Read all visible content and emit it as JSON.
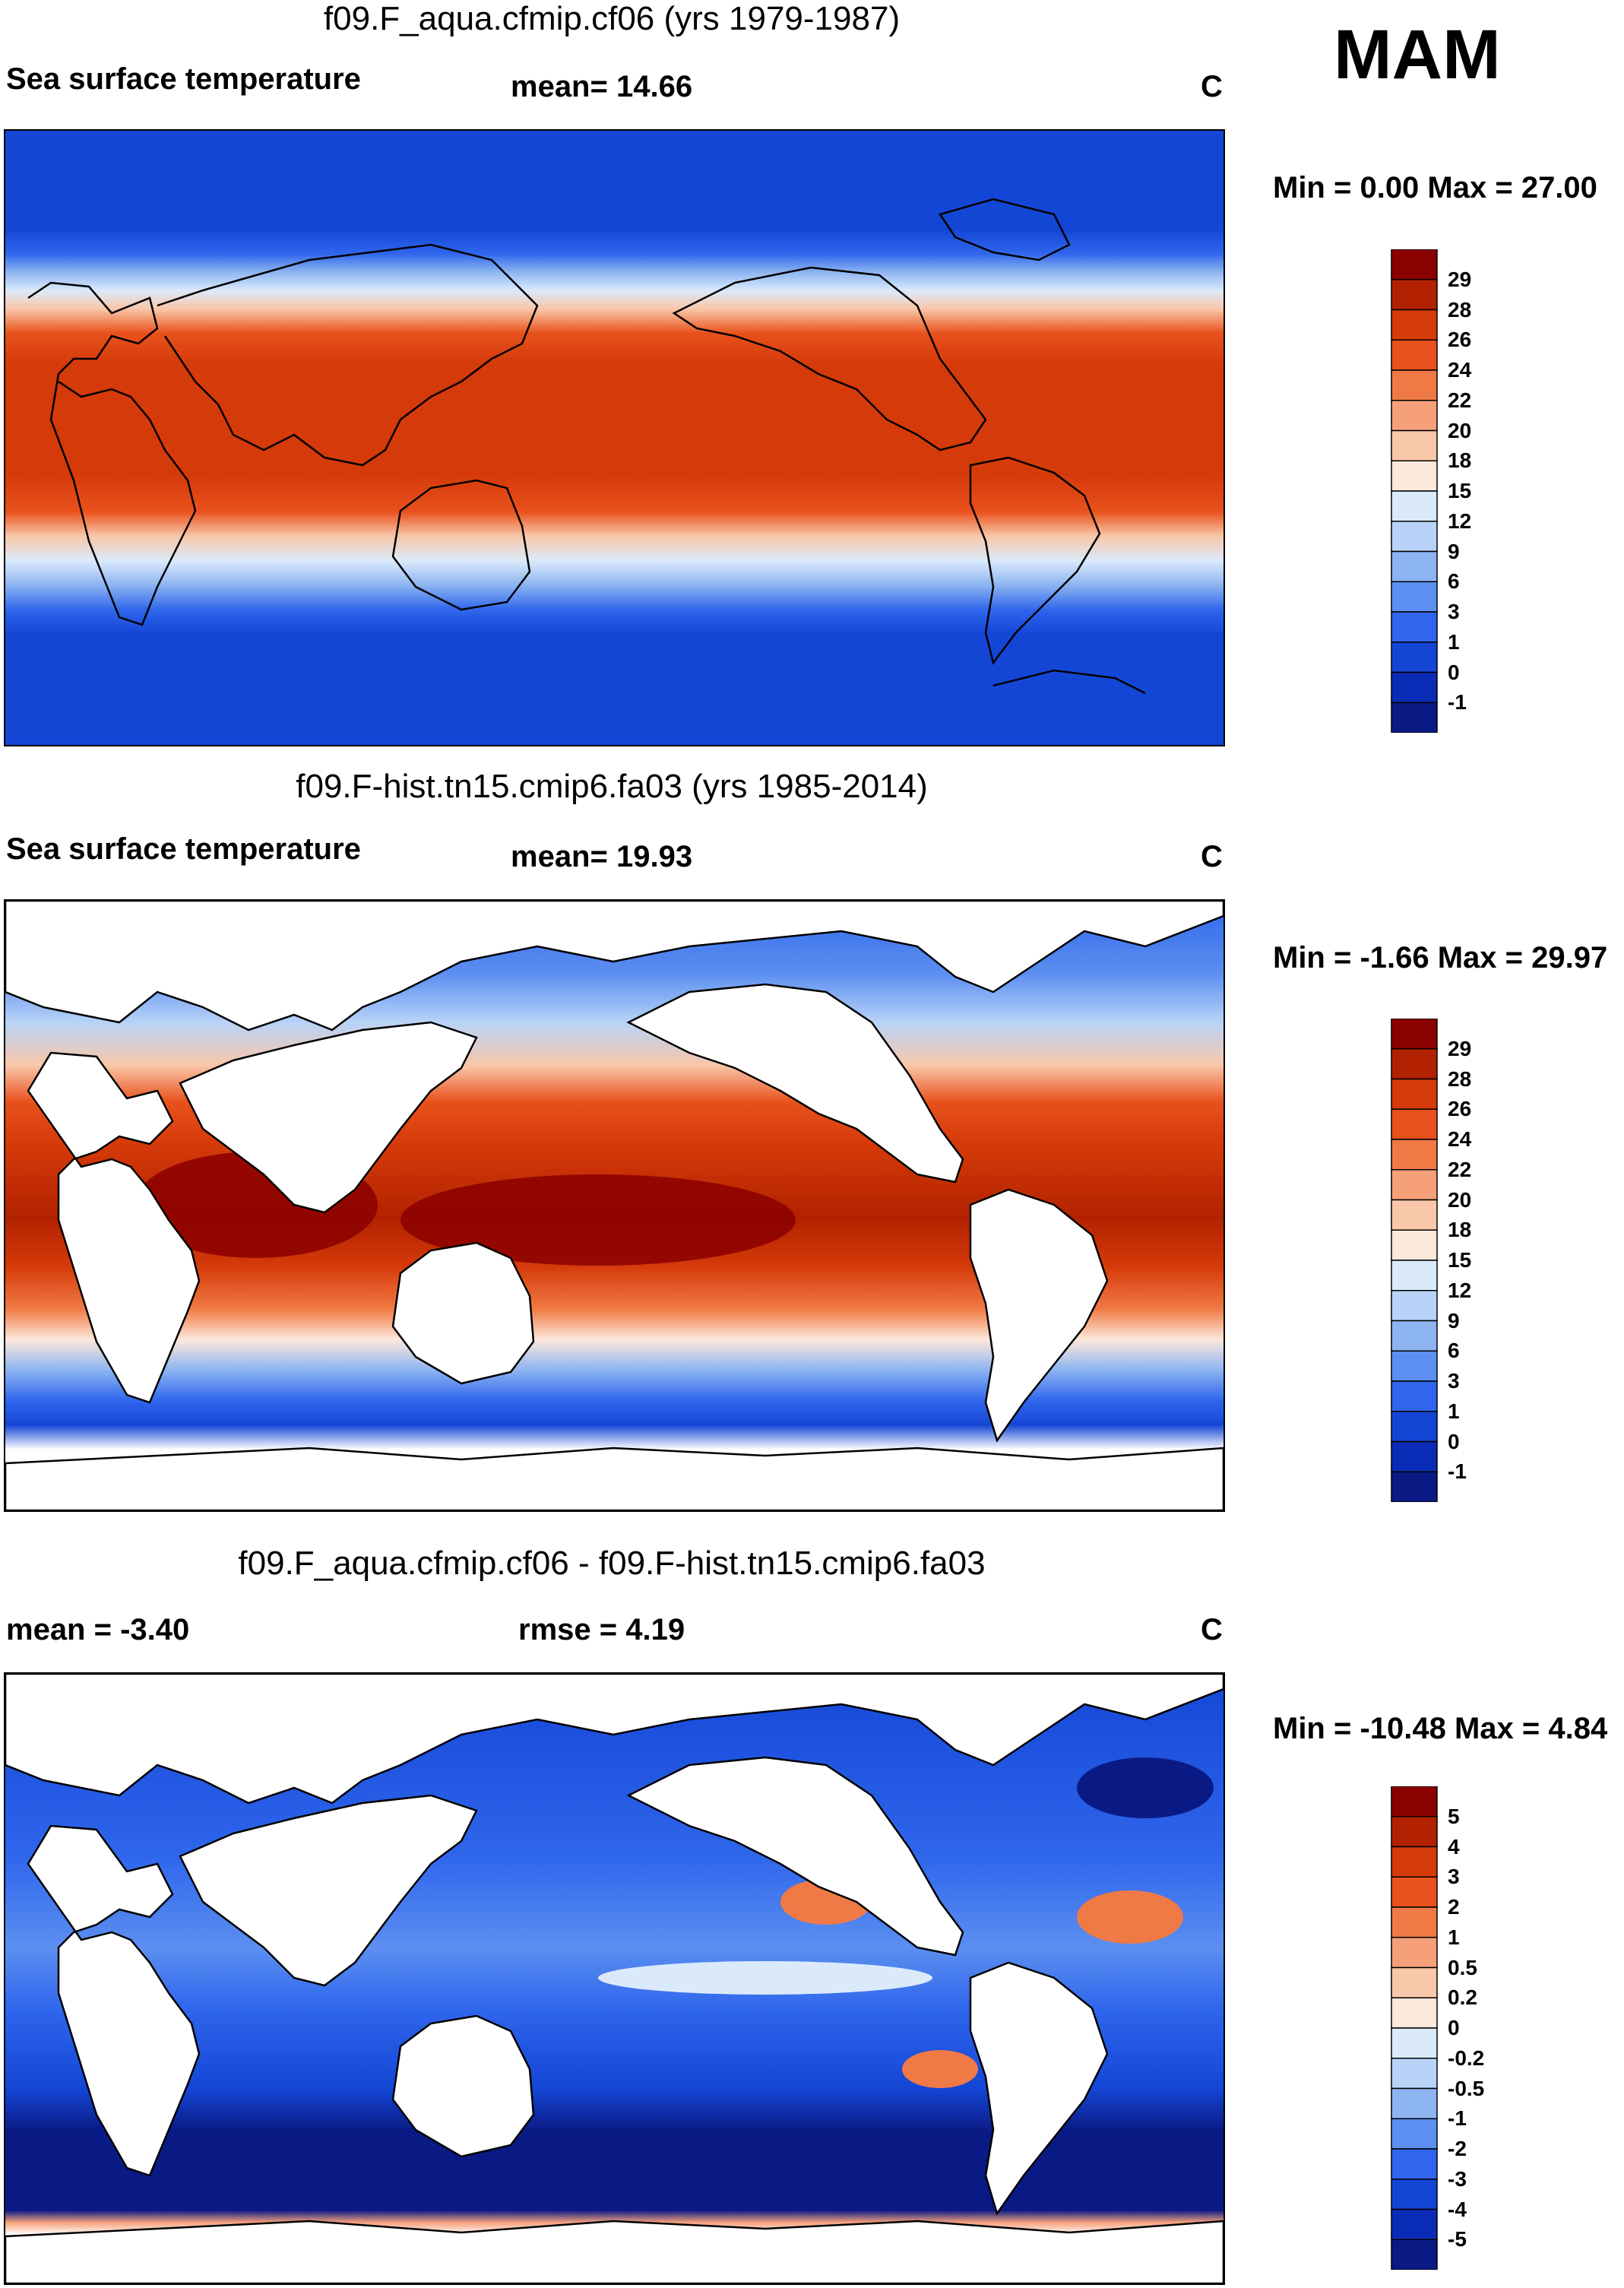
{
  "season": "MAM",
  "panels": [
    {
      "title": "f09.F_aqua.cfmip.cf06 (yrs 1979-1987)",
      "left_label": "Sea surface temperature",
      "center_label": "mean=  14.66",
      "units": "C",
      "minmax": "Min =   0.00 Max =  27.00",
      "colorbar_labels": [
        "29",
        "28",
        "26",
        "24",
        "22",
        "20",
        "18",
        "15",
        "12",
        "9",
        "6",
        "3",
        "1",
        "0",
        "-1"
      ]
    },
    {
      "title": "f09.F-hist.tn15.cmip6.fa03 (yrs 1985-2014)",
      "left_label": "Sea surface temperature",
      "center_label": "mean=  19.93",
      "units": "C",
      "minmax": "Min =  -1.66 Max =  29.97",
      "colorbar_labels": [
        "29",
        "28",
        "26",
        "24",
        "22",
        "20",
        "18",
        "15",
        "12",
        "9",
        "6",
        "3",
        "1",
        "0",
        "-1"
      ]
    },
    {
      "title": "f09.F_aqua.cfmip.cf06 - f09.F-hist.tn15.cmip6.fa03",
      "left_label": "mean =  -3.40",
      "center_label": "rmse =    4.19",
      "units": "C",
      "minmax": "Min = -10.48 Max =   4.84",
      "colorbar_labels": [
        "5",
        "4",
        "3",
        "2",
        "1",
        "0.5",
        "0.2",
        "0",
        "-0.2",
        "-0.5",
        "-1",
        "-2",
        "-3",
        "-4",
        "-5"
      ]
    }
  ],
  "colors": {
    "sst_scale": [
      "#8b0000",
      "#b22200",
      "#d53a0a",
      "#e8511c",
      "#f07a45",
      "#f6a07a",
      "#f9c7a9",
      "#fde8dc",
      "#dbeafb",
      "#b8d3f7",
      "#8cb4f1",
      "#5c8ff0",
      "#2f66ec",
      "#1446d6",
      "#0a2bb5",
      "#0a1a85"
    ],
    "diff_scale": [
      "#8b0000",
      "#b22200",
      "#d53a0a",
      "#e8511c",
      "#f07a45",
      "#f6a07a",
      "#f9c7a9",
      "#fde8dc",
      "#dbeafb",
      "#b8d3f7",
      "#8cb4f1",
      "#5c8ff0",
      "#2f66ec",
      "#1446d6",
      "#0a2bb5",
      "#0a1a85"
    ]
  }
}
